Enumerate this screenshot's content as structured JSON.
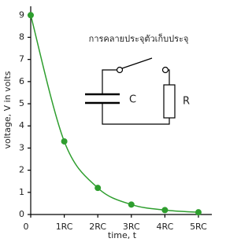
{
  "chart_data": {
    "type": "line",
    "title": "การคลายประจุตัวเก็บประจุ",
    "x_label": "time, t",
    "y_label": "voltage, V in volts",
    "annotations": [
      "C",
      "R"
    ],
    "x": [
      0,
      1,
      2,
      3,
      4,
      5
    ],
    "series": [
      {
        "name": "voltage",
        "color": "#2e9e2e",
        "values": [
          9,
          3.3,
          1.2,
          0.45,
          0.2,
          0.1
        ]
      }
    ],
    "xlim": [
      0,
      5.4
    ],
    "xticks": [
      {
        "value": 0,
        "label": "0"
      },
      {
        "value": 1,
        "label": "1RC"
      },
      {
        "value": 2,
        "label": "2RC"
      },
      {
        "value": 3,
        "label": "3RC"
      },
      {
        "value": 4,
        "label": "4RC"
      },
      {
        "value": 5,
        "label": "5RC"
      }
    ],
    "ylim": [
      0,
      9.4
    ],
    "yticks": [
      0,
      1,
      2,
      3,
      4,
      5,
      6,
      7,
      8,
      9
    ]
  }
}
